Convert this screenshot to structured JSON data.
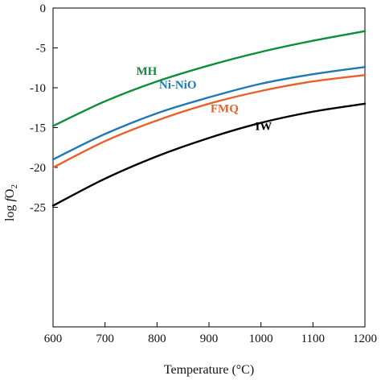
{
  "chart_data": {
    "type": "line",
    "xlabel": "Temperature (°C)",
    "ylabel_parts": {
      "pre": "log ",
      "italic": "f",
      "main": "O",
      "sub": "2"
    },
    "xlim": [
      600,
      1200
    ],
    "ylim": [
      -40,
      0
    ],
    "xticks": [
      600,
      700,
      800,
      900,
      1000,
      1100,
      1200
    ],
    "yticks": [
      0,
      -5,
      -10,
      -15,
      -20,
      -25
    ],
    "grid": false,
    "legend": "none",
    "series": [
      {
        "name": "MH",
        "color": "#0e8c3a",
        "x": [
          600,
          700,
          800,
          900,
          1000,
          1100,
          1200
        ],
        "y": [
          -14.8,
          -11.7,
          -9.2,
          -7.2,
          -5.5,
          -4.1,
          -2.9
        ],
        "label_at": [
          780,
          -8.4
        ]
      },
      {
        "name": "Ni-NiO",
        "color": "#1f77b4",
        "x": [
          600,
          700,
          800,
          900,
          1000,
          1100,
          1200
        ],
        "y": [
          -19.0,
          -15.8,
          -13.2,
          -11.2,
          -9.5,
          -8.3,
          -7.4
        ],
        "label_at": [
          840,
          -10.1
        ]
      },
      {
        "name": "FMQ",
        "color": "#e8602c",
        "x": [
          600,
          700,
          800,
          900,
          1000,
          1100,
          1200
        ],
        "y": [
          -20.0,
          -16.7,
          -14.1,
          -12.0,
          -10.4,
          -9.2,
          -8.4
        ],
        "label_at": [
          930,
          -13.1
        ]
      },
      {
        "name": "IW",
        "color": "#000000",
        "x": [
          600,
          700,
          800,
          900,
          1000,
          1100,
          1200
        ],
        "y": [
          -24.8,
          -21.4,
          -18.6,
          -16.3,
          -14.4,
          -13.0,
          -12.0
        ],
        "label_at": [
          1005,
          -15.3
        ]
      }
    ]
  }
}
